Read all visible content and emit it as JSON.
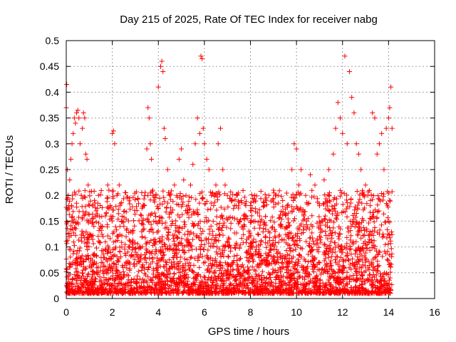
{
  "chart_data": {
    "type": "scatter",
    "title": "Day 215 of 2025, Rate Of TEC Index for receiver nabg",
    "xlabel": "GPS time / hours",
    "ylabel": "ROTI / TECUs",
    "xlim": [
      0,
      16
    ],
    "ylim": [
      0,
      0.5
    ],
    "xticks": [
      0,
      2,
      4,
      6,
      8,
      10,
      12,
      14,
      16
    ],
    "yticks": [
      0,
      0.05,
      0.1,
      0.15,
      0.2,
      0.25,
      0.3,
      0.35,
      0.4,
      0.45,
      0.5
    ],
    "xtick_labels": [
      "0",
      "2",
      "4",
      "6",
      "8",
      "10",
      "12",
      "14",
      "16"
    ],
    "ytick_labels": [
      "0",
      "0.05",
      "0.1",
      "0.15",
      "0.2",
      "0.25",
      "0.3",
      "0.35",
      "0.4",
      "0.45",
      "0.5"
    ],
    "grid": true,
    "marker": "+",
    "color": "#ff0000",
    "series": [
      {
        "x": [
          0.0,
          0.02,
          0.05,
          0.08,
          0.1,
          0.15,
          0.2,
          0.25,
          0.3,
          0.35,
          0.4,
          0.45,
          0.5,
          0.55,
          0.6,
          0.65,
          0.7,
          0.75,
          0.8,
          0.85,
          0.9,
          0.95,
          1.0,
          1.05,
          1.1,
          1.2,
          1.3,
          1.4,
          1.5,
          1.6,
          1.7,
          1.8,
          1.9,
          2.0,
          2.05,
          2.1,
          2.2,
          2.3,
          2.4,
          2.5,
          2.6,
          2.7,
          2.8,
          2.9,
          3.0,
          3.1,
          3.2,
          3.3,
          3.4,
          3.5,
          3.55,
          3.6,
          3.65,
          3.7,
          3.8,
          3.9,
          4.0,
          4.1,
          4.15,
          4.2,
          4.25,
          4.3,
          4.4,
          4.5,
          4.6,
          4.7,
          4.8,
          4.9,
          5.0,
          5.1,
          5.2,
          5.3,
          5.4,
          5.5,
          5.6,
          5.7,
          5.8,
          5.85,
          5.9,
          5.95,
          6.0,
          6.1,
          6.2,
          6.3,
          6.4,
          6.5,
          6.6,
          6.7,
          6.8,
          6.9,
          7.0,
          7.2,
          7.4,
          7.6,
          7.8,
          8.0,
          8.2,
          8.4,
          8.6,
          8.8,
          9.0,
          9.2,
          9.4,
          9.6,
          9.8,
          9.9,
          10.0,
          10.1,
          10.2,
          10.4,
          10.6,
          10.8,
          11.0,
          11.2,
          11.4,
          11.6,
          11.7,
          11.8,
          11.9,
          12.0,
          12.1,
          12.2,
          12.3,
          12.4,
          12.5,
          12.6,
          12.7,
          12.8,
          12.9,
          13.0,
          13.1,
          13.2,
          13.3,
          13.4,
          13.5,
          13.6,
          13.7,
          13.8,
          13.9,
          14.0,
          14.05,
          14.1,
          14.15
        ],
        "y": [
          0.37,
          0.415,
          0.25,
          0.2,
          0.18,
          0.23,
          0.27,
          0.3,
          0.32,
          0.35,
          0.34,
          0.36,
          0.365,
          0.35,
          0.3,
          0.2,
          0.33,
          0.36,
          0.35,
          0.28,
          0.27,
          0.22,
          0.18,
          0.15,
          0.12,
          0.14,
          0.17,
          0.2,
          0.14,
          0.12,
          0.16,
          0.22,
          0.18,
          0.32,
          0.325,
          0.3,
          0.2,
          0.22,
          0.15,
          0.14,
          0.12,
          0.1,
          0.13,
          0.11,
          0.09,
          0.08,
          0.1,
          0.12,
          0.18,
          0.29,
          0.37,
          0.35,
          0.3,
          0.27,
          0.15,
          0.2,
          0.41,
          0.45,
          0.46,
          0.44,
          0.33,
          0.31,
          0.25,
          0.2,
          0.15,
          0.22,
          0.2,
          0.27,
          0.29,
          0.23,
          0.2,
          0.18,
          0.22,
          0.26,
          0.3,
          0.35,
          0.32,
          0.47,
          0.465,
          0.33,
          0.3,
          0.27,
          0.25,
          0.2,
          0.18,
          0.22,
          0.3,
          0.33,
          0.25,
          0.22,
          0.2,
          0.19,
          0.2,
          0.19,
          0.18,
          0.17,
          0.15,
          0.16,
          0.18,
          0.2,
          0.21,
          0.2,
          0.19,
          0.18,
          0.25,
          0.3,
          0.29,
          0.22,
          0.25,
          0.2,
          0.24,
          0.22,
          0.18,
          0.23,
          0.25,
          0.28,
          0.33,
          0.38,
          0.35,
          0.32,
          0.47,
          0.3,
          0.44,
          0.39,
          0.36,
          0.3,
          0.28,
          0.25,
          0.2,
          0.22,
          0.2,
          0.18,
          0.36,
          0.35,
          0.28,
          0.3,
          0.32,
          0.25,
          0.33,
          0.35,
          0.37,
          0.41,
          0.33
        ]
      }
    ]
  }
}
